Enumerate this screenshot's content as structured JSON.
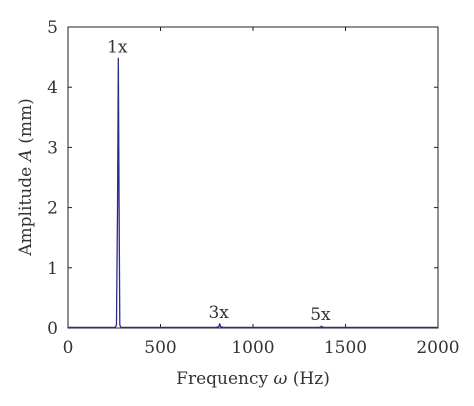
{
  "chart_data": {
    "type": "line",
    "xlabel_prefix": "Frequency ",
    "xlabel_symbol": "ω",
    "xlabel_suffix": " (Hz)",
    "ylabel_prefix": "Amplitude ",
    "ylabel_symbol": "A",
    "ylabel_suffix": " (mm)",
    "xlim": [
      0,
      2000
    ],
    "ylim": [
      0,
      5
    ],
    "xticks": [
      0,
      500,
      1000,
      1500,
      2000
    ],
    "xtick_labels": [
      "0",
      "500",
      "1000",
      "1500",
      "2000"
    ],
    "yticks": [
      0,
      1,
      2,
      3,
      4,
      5
    ],
    "ytick_labels": [
      "0",
      "1",
      "2",
      "3",
      "4",
      "5"
    ],
    "grid": false,
    "series": [
      {
        "color": "#2b2b8f",
        "x": [
          0,
          255,
          262,
          268,
          272,
          276,
          280,
          286,
          800,
          815,
          820,
          825,
          840,
          1355,
          1365,
          1370,
          1375,
          1385,
          2000
        ],
        "y": [
          0.01,
          0.01,
          0.05,
          2.1,
          4.48,
          2.1,
          0.05,
          0.01,
          0.01,
          0.02,
          0.07,
          0.02,
          0.01,
          0.01,
          0.015,
          0.03,
          0.015,
          0.01,
          0.01
        ]
      }
    ],
    "annotations": [
      {
        "text": "1x",
        "x": 272,
        "y": 4.48
      },
      {
        "text": "3x",
        "x": 820,
        "y": 0.07
      },
      {
        "text": "5x",
        "x": 1370,
        "y": 0.03
      }
    ]
  }
}
